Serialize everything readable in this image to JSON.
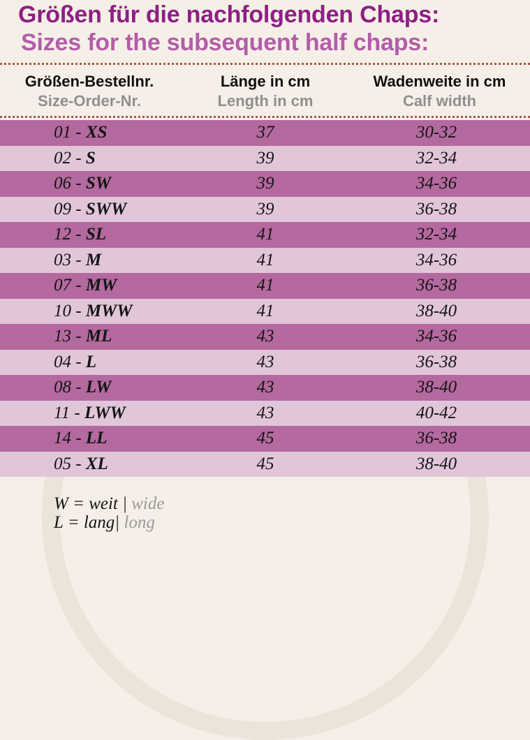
{
  "title": {
    "de": "Größen für die nachfolgenden Chaps:",
    "en": "Sizes for the subsequent half chaps:"
  },
  "headers": {
    "order": {
      "de": "Größen-Bestellnr.",
      "en": "Size-Order-Nr."
    },
    "length": {
      "de": "Länge in cm",
      "en": "Length in cm"
    },
    "calf": {
      "de": "Wadenweite in cm",
      "en": "Calf width"
    }
  },
  "rows": [
    {
      "num": "01 - ",
      "size": "XS",
      "length": "37",
      "calf": "30-32"
    },
    {
      "num": "02 - ",
      "size": "S",
      "length": "39",
      "calf": "32-34"
    },
    {
      "num": "06 - ",
      "size": "SW",
      "length": "39",
      "calf": "34-36"
    },
    {
      "num": "09 - ",
      "size": "SWW",
      "length": "39",
      "calf": "36-38"
    },
    {
      "num": "12 - ",
      "size": "SL",
      "length": "41",
      "calf": "32-34"
    },
    {
      "num": "03 - ",
      "size": "M",
      "length": "41",
      "calf": "34-36"
    },
    {
      "num": "07 - ",
      "size": "MW",
      "length": "41",
      "calf": "36-38"
    },
    {
      "num": "10 - ",
      "size": "MWW",
      "length": "41",
      "calf": "38-40"
    },
    {
      "num": "13 - ",
      "size": "ML",
      "length": "43",
      "calf": "34-36"
    },
    {
      "num": "04 - ",
      "size": "L",
      "length": "43",
      "calf": "36-38"
    },
    {
      "num": "08 - ",
      "size": "LW",
      "length": "43",
      "calf": "38-40"
    },
    {
      "num": "11 - ",
      "size": "LWW",
      "length": "43",
      "calf": "40-42"
    },
    {
      "num": "14 - ",
      "size": "LL",
      "length": "45",
      "calf": "36-38"
    },
    {
      "num": "05 - ",
      "size": "XL",
      "length": "45",
      "calf": "38-40"
    }
  ],
  "legend": [
    {
      "de": "W = weit | ",
      "en": "wide"
    },
    {
      "de": "L = lang| ",
      "en": "long"
    }
  ],
  "colors": {
    "title_de": "#8e1f84",
    "title_en": "#b35da8",
    "row_dark": "#b4699f",
    "row_light": "#e1c6d9",
    "background": "#f5efe8"
  }
}
